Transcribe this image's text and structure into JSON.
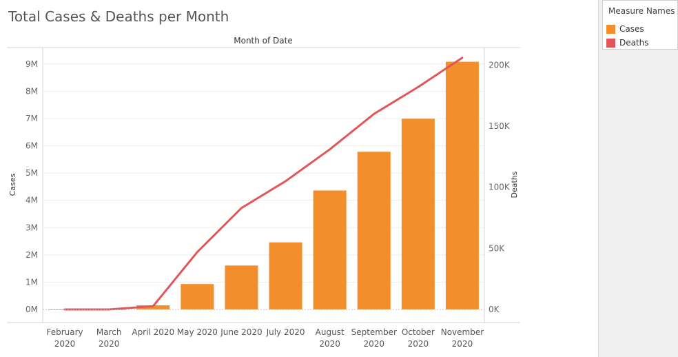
{
  "title": "Total Cases & Deaths per Month",
  "legend": {
    "title": "Measure Names",
    "items": [
      {
        "label": "Cases",
        "color": "#f28e2b"
      },
      {
        "label": "Deaths",
        "color": "#e15759"
      }
    ]
  },
  "chart_data": {
    "type": "bar",
    "title": "Total Cases & Deaths per Month",
    "xlabel": "Month of Date",
    "categories": [
      [
        "February",
        "2020"
      ],
      [
        "March",
        "2020"
      ],
      [
        "April 2020"
      ],
      [
        "May 2020"
      ],
      [
        "June 2020"
      ],
      [
        "July 2020"
      ],
      [
        "August",
        "2020"
      ],
      [
        "September",
        "2020"
      ],
      [
        "October",
        "2020"
      ],
      [
        "November",
        "2020"
      ]
    ],
    "series": [
      {
        "name": "Cases",
        "type": "bar",
        "axis": "left",
        "color": "#f28e2b",
        "values": [
          25,
          200,
          150000,
          930000,
          1610000,
          2460000,
          4360000,
          5780000,
          6990000,
          9080000
        ]
      },
      {
        "name": "Deaths",
        "type": "line",
        "axis": "right",
        "color": "#e15759",
        "values": [
          1,
          10,
          2700,
          47000,
          83000,
          105000,
          131000,
          160000,
          182000,
          206000
        ]
      }
    ],
    "y_left": {
      "label": "Cases",
      "range": [
        0,
        9600000
      ],
      "ticks": [
        0,
        1000000,
        2000000,
        3000000,
        4000000,
        5000000,
        6000000,
        7000000,
        8000000,
        9000000
      ],
      "tick_labels": [
        "0M",
        "1M",
        "2M",
        "3M",
        "4M",
        "5M",
        "6M",
        "7M",
        "8M",
        "9M"
      ]
    },
    "y_right": {
      "label": "Deaths",
      "range": [
        0,
        214300
      ],
      "ticks": [
        0,
        50000,
        100000,
        150000,
        200000
      ],
      "tick_labels": [
        "0K",
        "50K",
        "100K",
        "150K",
        "200K"
      ]
    },
    "grid": true,
    "legend_position": "right"
  }
}
